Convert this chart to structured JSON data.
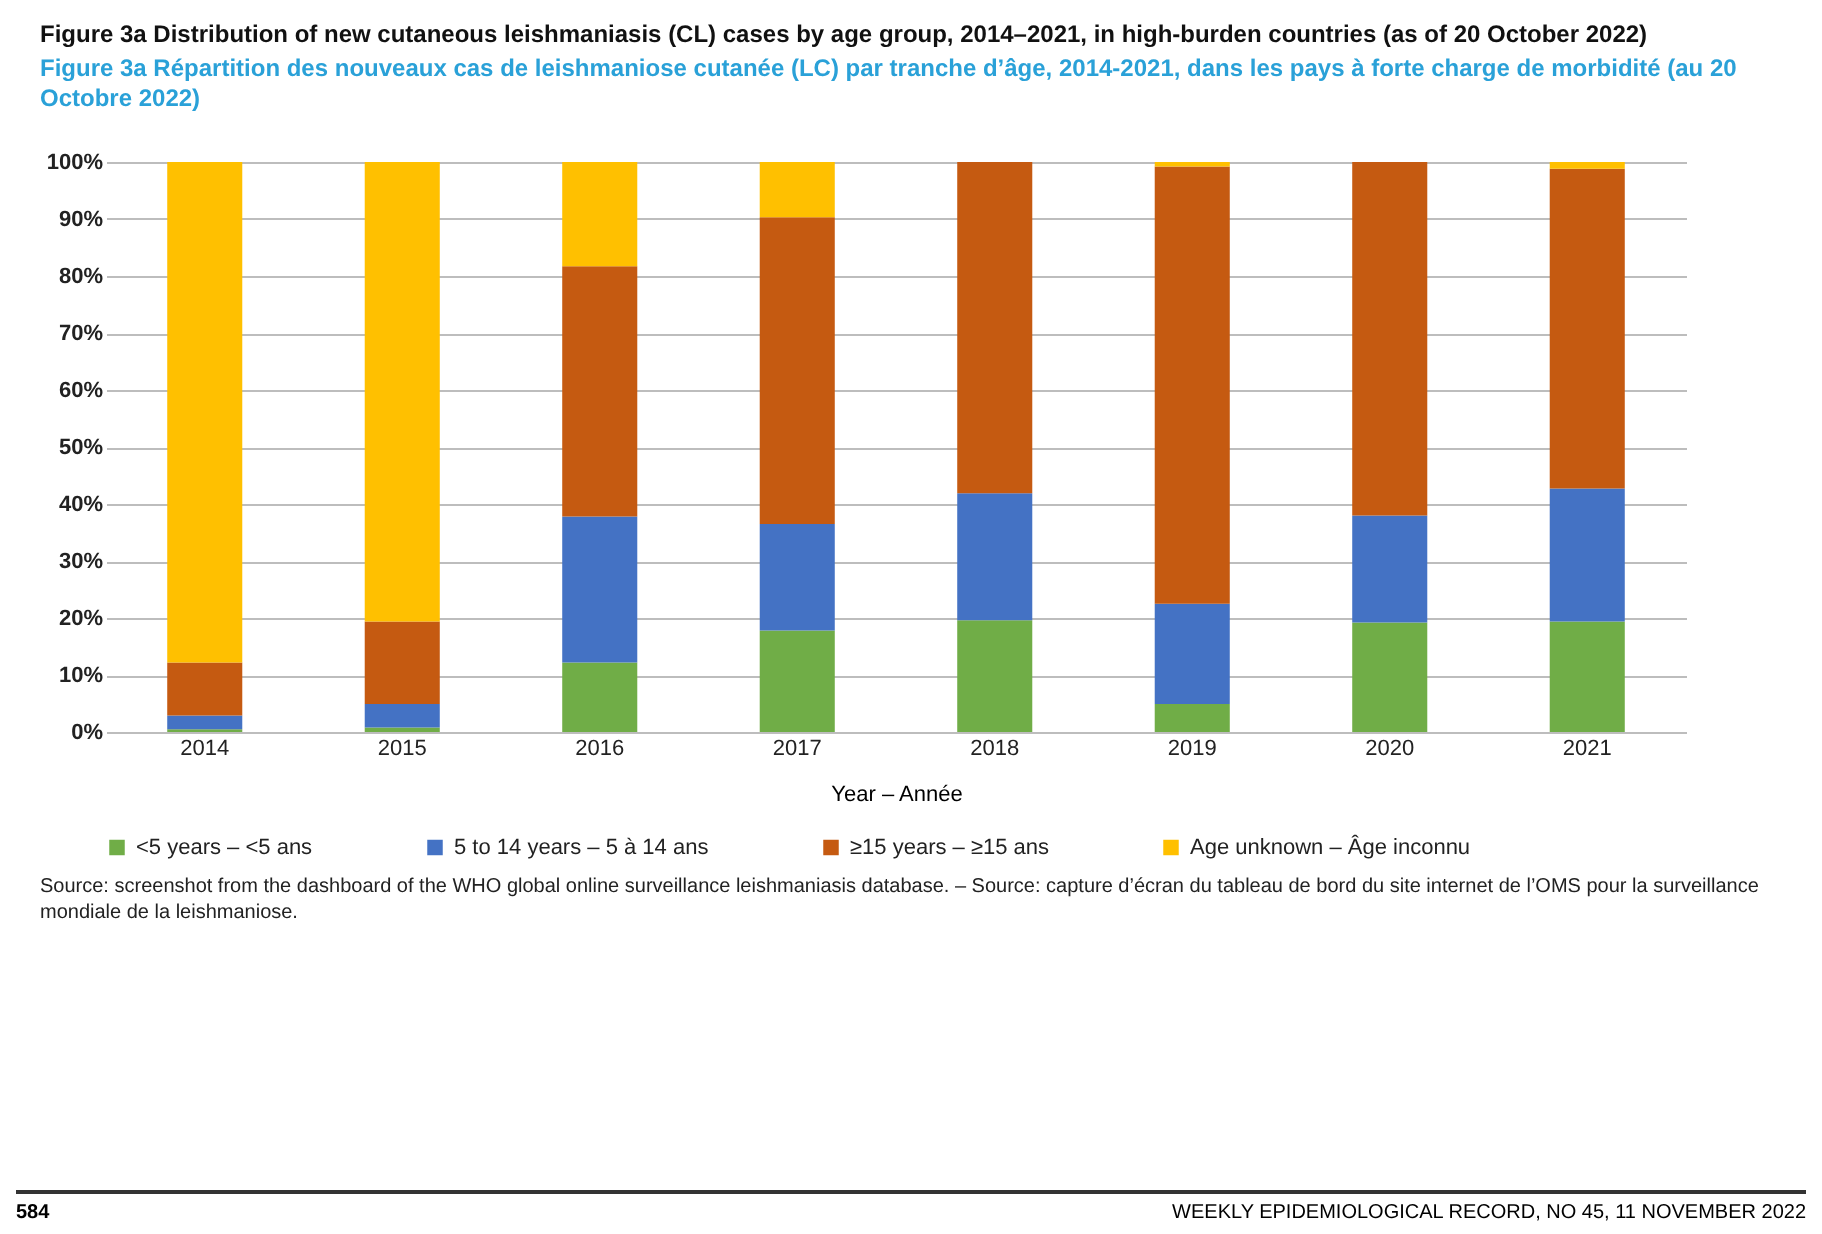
{
  "chart_data": {
    "type": "bar",
    "stacked": true,
    "title": "Figure 3a  Distribution of new cutaneous leishmaniasis (CL) cases by age group, 2014–2021, in high-burden countries (as of 20 October 2022)",
    "subtitle": "Figure 3a  Répartition des nouveaux cas de leishmaniose cutanée (LC) par tranche d’âge, 2014-2021, dans les pays à forte charge de morbidité (au 20 Octobre 2022)",
    "xlabel": "Year – Année",
    "categories": [
      "2014",
      "2015",
      "2016",
      "2017",
      "2018",
      "2019",
      "2020",
      "2021"
    ],
    "series": [
      {
        "name": "<5 years – <5 ans",
        "color": "#70ad47",
        "values": [
          0.5,
          0.8,
          12.2,
          17.8,
          19.6,
          4.9,
          19.2,
          19.4
        ]
      },
      {
        "name": "5 to 14 years – 5 à 14 ans",
        "color": "#4472c4",
        "values": [
          2.4,
          4.1,
          25.6,
          18.7,
          22.3,
          17.6,
          18.8,
          23.3
        ]
      },
      {
        "name": "≥15 years – ≥15 ans",
        "color": "#c55a11",
        "values": [
          9.3,
          14.5,
          43.9,
          53.8,
          58.1,
          76.7,
          62.0,
          56.1
        ]
      },
      {
        "name": "Age unknown – Âge inconnu",
        "color": "#ffc000",
        "values": [
          87.8,
          80.6,
          18.3,
          9.7,
          0,
          0.8,
          0,
          1.2
        ]
      }
    ],
    "ylim": [
      0,
      100
    ],
    "yticks": [
      {
        "value": 0,
        "label": "0%"
      },
      {
        "value": 10,
        "label": "10%"
      },
      {
        "value": 20,
        "label": "20%"
      },
      {
        "value": 30,
        "label": "30%"
      },
      {
        "value": 40,
        "label": "40%"
      },
      {
        "value": 50,
        "label": "50%"
      },
      {
        "value": 60,
        "label": "60%"
      },
      {
        "value": 70,
        "label": "70%"
      },
      {
        "value": 80,
        "label": "80%"
      },
      {
        "value": 90,
        "label": "90%"
      },
      {
        "value": 100,
        "label": "100%"
      }
    ],
    "grid": "y",
    "legend": "bottom",
    "annotations": [
      "Source: screenshot from the dashboard of the WHO global online surveillance leishmaniasis database. – Source: capture d’écran du tableau de bord du site internet de l’OMS pour la surveillance mondiale de la leishmaniose.",
      "584",
      "WEEKLY EPIDEMIOLOGICAL RECORD, NO 45, 11 NOVEMBER 2022"
    ]
  }
}
